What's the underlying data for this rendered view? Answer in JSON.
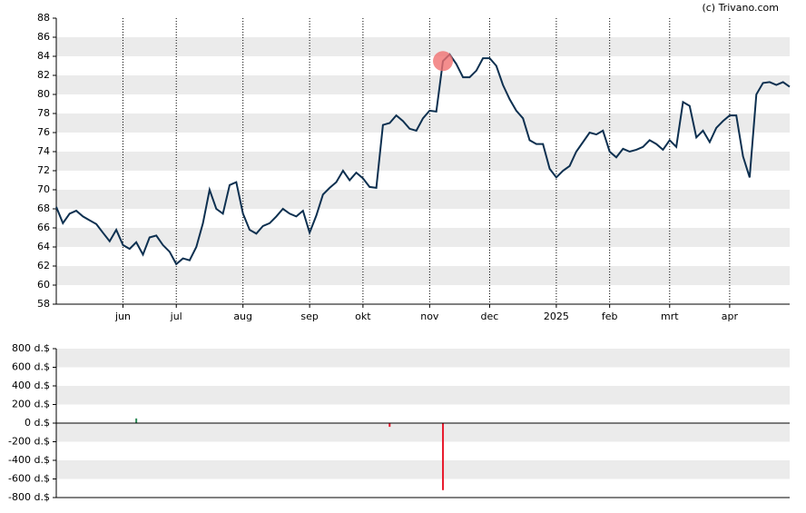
{
  "source": "(c) Trivano.com",
  "chart_data": [
    {
      "type": "line",
      "categories": [
        null,
        null,
        null,
        null,
        null,
        null,
        null,
        null,
        null,
        null,
        "jun",
        null,
        null,
        null,
        null,
        null,
        null,
        null,
        "jul",
        null,
        null,
        null,
        null,
        null,
        null,
        null,
        null,
        null,
        "aug",
        null,
        null,
        null,
        null,
        null,
        null,
        null,
        null,
        null,
        "sep",
        null,
        null,
        null,
        null,
        null,
        null,
        null,
        "okt",
        null,
        null,
        null,
        null,
        null,
        null,
        null,
        null,
        null,
        "nov",
        null,
        null,
        null,
        null,
        null,
        null,
        null,
        null,
        "dec",
        null,
        null,
        null,
        null,
        null,
        null,
        null,
        null,
        null,
        "2025",
        null,
        null,
        null,
        null,
        null,
        null,
        null,
        "feb",
        null,
        null,
        null,
        null,
        null,
        null,
        null,
        null,
        "mrt",
        null,
        null,
        null,
        null,
        null,
        null,
        null,
        null,
        "apr",
        null,
        null,
        null,
        null,
        null,
        null,
        null,
        null,
        null
      ],
      "series": [
        {
          "color": "#0d3050",
          "values": [
            68.2,
            66.5,
            67.5,
            67.8,
            67.2,
            66.8,
            66.4,
            65.5,
            64.6,
            65.8,
            64.2,
            63.8,
            64.5,
            63.2,
            65,
            65.2,
            64.2,
            63.5,
            62.2,
            62.8,
            62.6,
            64,
            66.5,
            70,
            68,
            67.5,
            70.5,
            70.8,
            67.5,
            65.8,
            65.4,
            66.2,
            66.5,
            67.2,
            68,
            67.5,
            67.2,
            67.8,
            65.5,
            67.3,
            69.5,
            70.2,
            70.8,
            72,
            71,
            71.8,
            71.2,
            70.3,
            70.2,
            76.8,
            77,
            77.8,
            77.2,
            76.4,
            76.2,
            77.5,
            78.3,
            78.2,
            83.5,
            84.2,
            83.2,
            81.8,
            81.8,
            82.5,
            83.8,
            83.8,
            83,
            81,
            79.5,
            78.3,
            77.5,
            75.2,
            74.8,
            74.8,
            72.2,
            71.3,
            72,
            72.5,
            74,
            75,
            76,
            75.8,
            76.2,
            74,
            73.4,
            74.3,
            74,
            74.2,
            74.5,
            75.2,
            74.8,
            74.2,
            75.2,
            74.5,
            79.2,
            78.8,
            75.5,
            76.2,
            75,
            76.5,
            77.2,
            77.8,
            77.8,
            73.5,
            71.3,
            80,
            81.2,
            81.3,
            81,
            81.3,
            80.8
          ]
        }
      ],
      "highlight": {
        "index": 58,
        "color": "#f07070"
      },
      "ylim": [
        58,
        88
      ],
      "yticks": [
        58,
        60,
        62,
        64,
        66,
        68,
        70,
        72,
        74,
        76,
        78,
        80,
        82,
        84,
        86,
        88
      ],
      "grid": true
    },
    {
      "type": "bar",
      "xlim": [
        0,
        110
      ],
      "x": [
        12,
        50,
        58
      ],
      "values": [
        50,
        -40,
        -720
      ],
      "colors": [
        "#2e8b57",
        "#e8192c",
        "#e8192c"
      ],
      "ylim": [
        -800,
        800
      ],
      "yticks": [
        {
          "value": -800,
          "label": "-800 d.$"
        },
        {
          "value": -600,
          "label": "-600 d.$"
        },
        {
          "value": -400,
          "label": "-400 d.$"
        },
        {
          "value": -200,
          "label": "-200 d.$"
        },
        {
          "value": 0,
          "label": "0 d.$"
        },
        {
          "value": 200,
          "label": "200 d.$"
        },
        {
          "value": 400,
          "label": "400 d.$"
        },
        {
          "value": 600,
          "label": "600 d.$"
        },
        {
          "value": 800,
          "label": "800 d.$"
        }
      ],
      "grid": true
    }
  ]
}
